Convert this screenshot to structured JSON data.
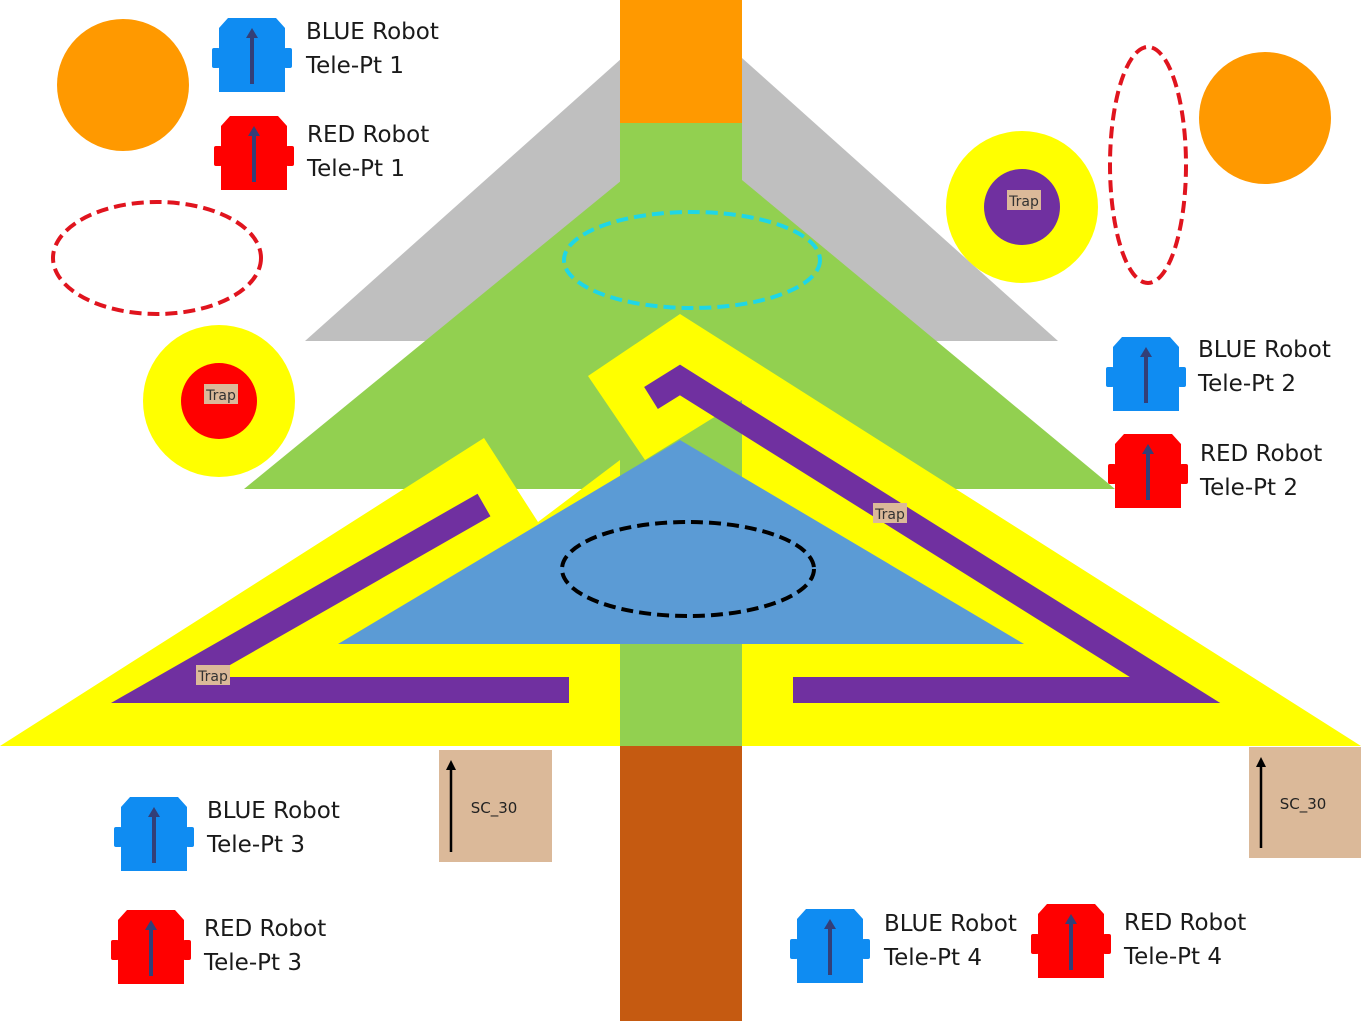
{
  "colors": {
    "orange": "#ff9900",
    "gray": "#bfbfbf",
    "green": "#92d050",
    "blue_zone": "#5b9bd5",
    "yellow": "#ffff00",
    "purple": "#7030a0",
    "red": "#ff0000",
    "trunk": "#c55a11",
    "tan": "#dbb999",
    "robot_blue": "#0f8cf2",
    "robot_red": "#ff0000",
    "cyan_dash": "#1fd6e6",
    "black_dash": "#000000"
  },
  "robots": [
    {
      "team": "BLUE",
      "label": "BLUE Robot",
      "point": "Tele-Pt 1",
      "icon": "blue-robot-icon"
    },
    {
      "team": "RED",
      "label": "RED Robot",
      "point": "Tele-Pt 1",
      "icon": "red-robot-icon"
    },
    {
      "team": "BLUE",
      "label": "BLUE Robot",
      "point": "Tele-Pt 2",
      "icon": "blue-robot-icon"
    },
    {
      "team": "RED",
      "label": "RED Robot",
      "point": "Tele-Pt 2",
      "icon": "red-robot-icon"
    },
    {
      "team": "BLUE",
      "label": "BLUE Robot",
      "point": "Tele-Pt 3",
      "icon": "blue-robot-icon"
    },
    {
      "team": "RED",
      "label": "RED Robot",
      "point": "Tele-Pt 3",
      "icon": "red-robot-icon"
    },
    {
      "team": "BLUE",
      "label": "BLUE Robot",
      "point": "Tele-Pt 4",
      "icon": "blue-robot-icon"
    },
    {
      "team": "RED",
      "label": "RED Robot",
      "point": "Tele-Pt 4",
      "icon": "red-robot-icon"
    }
  ],
  "traps": [
    "Trap",
    "Trap",
    "Trap",
    "Trap"
  ],
  "start_zones": [
    "SC_30",
    "SC_30"
  ]
}
